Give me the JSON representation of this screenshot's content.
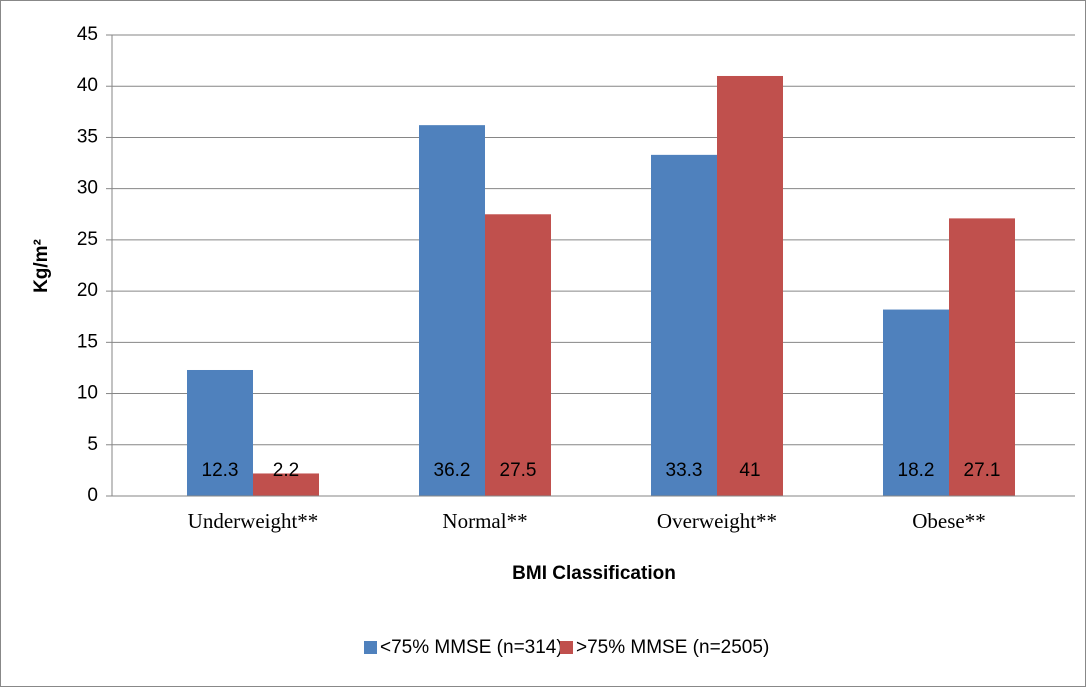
{
  "chart_data": {
    "type": "bar",
    "y_label": "Kg/m²",
    "x_label": "BMI Classification",
    "categories": [
      "Underweight**",
      "Normal**",
      "Overweight**",
      "Obese**"
    ],
    "series": [
      {
        "name": "<75% MMSE (n=314)",
        "color": "#4f81bd",
        "values": [
          12.3,
          36.2,
          33.3,
          18.2
        ]
      },
      {
        "name": ">75% MMSE (n=2505)",
        "color": "#c0504d",
        "values": [
          2.2,
          27.5,
          41,
          27.1
        ]
      }
    ],
    "ylim": [
      0,
      45
    ],
    "yticks": [
      0,
      5,
      10,
      15,
      20,
      25,
      30,
      35,
      40,
      45
    ],
    "grid": true,
    "legend": "bottom"
  }
}
